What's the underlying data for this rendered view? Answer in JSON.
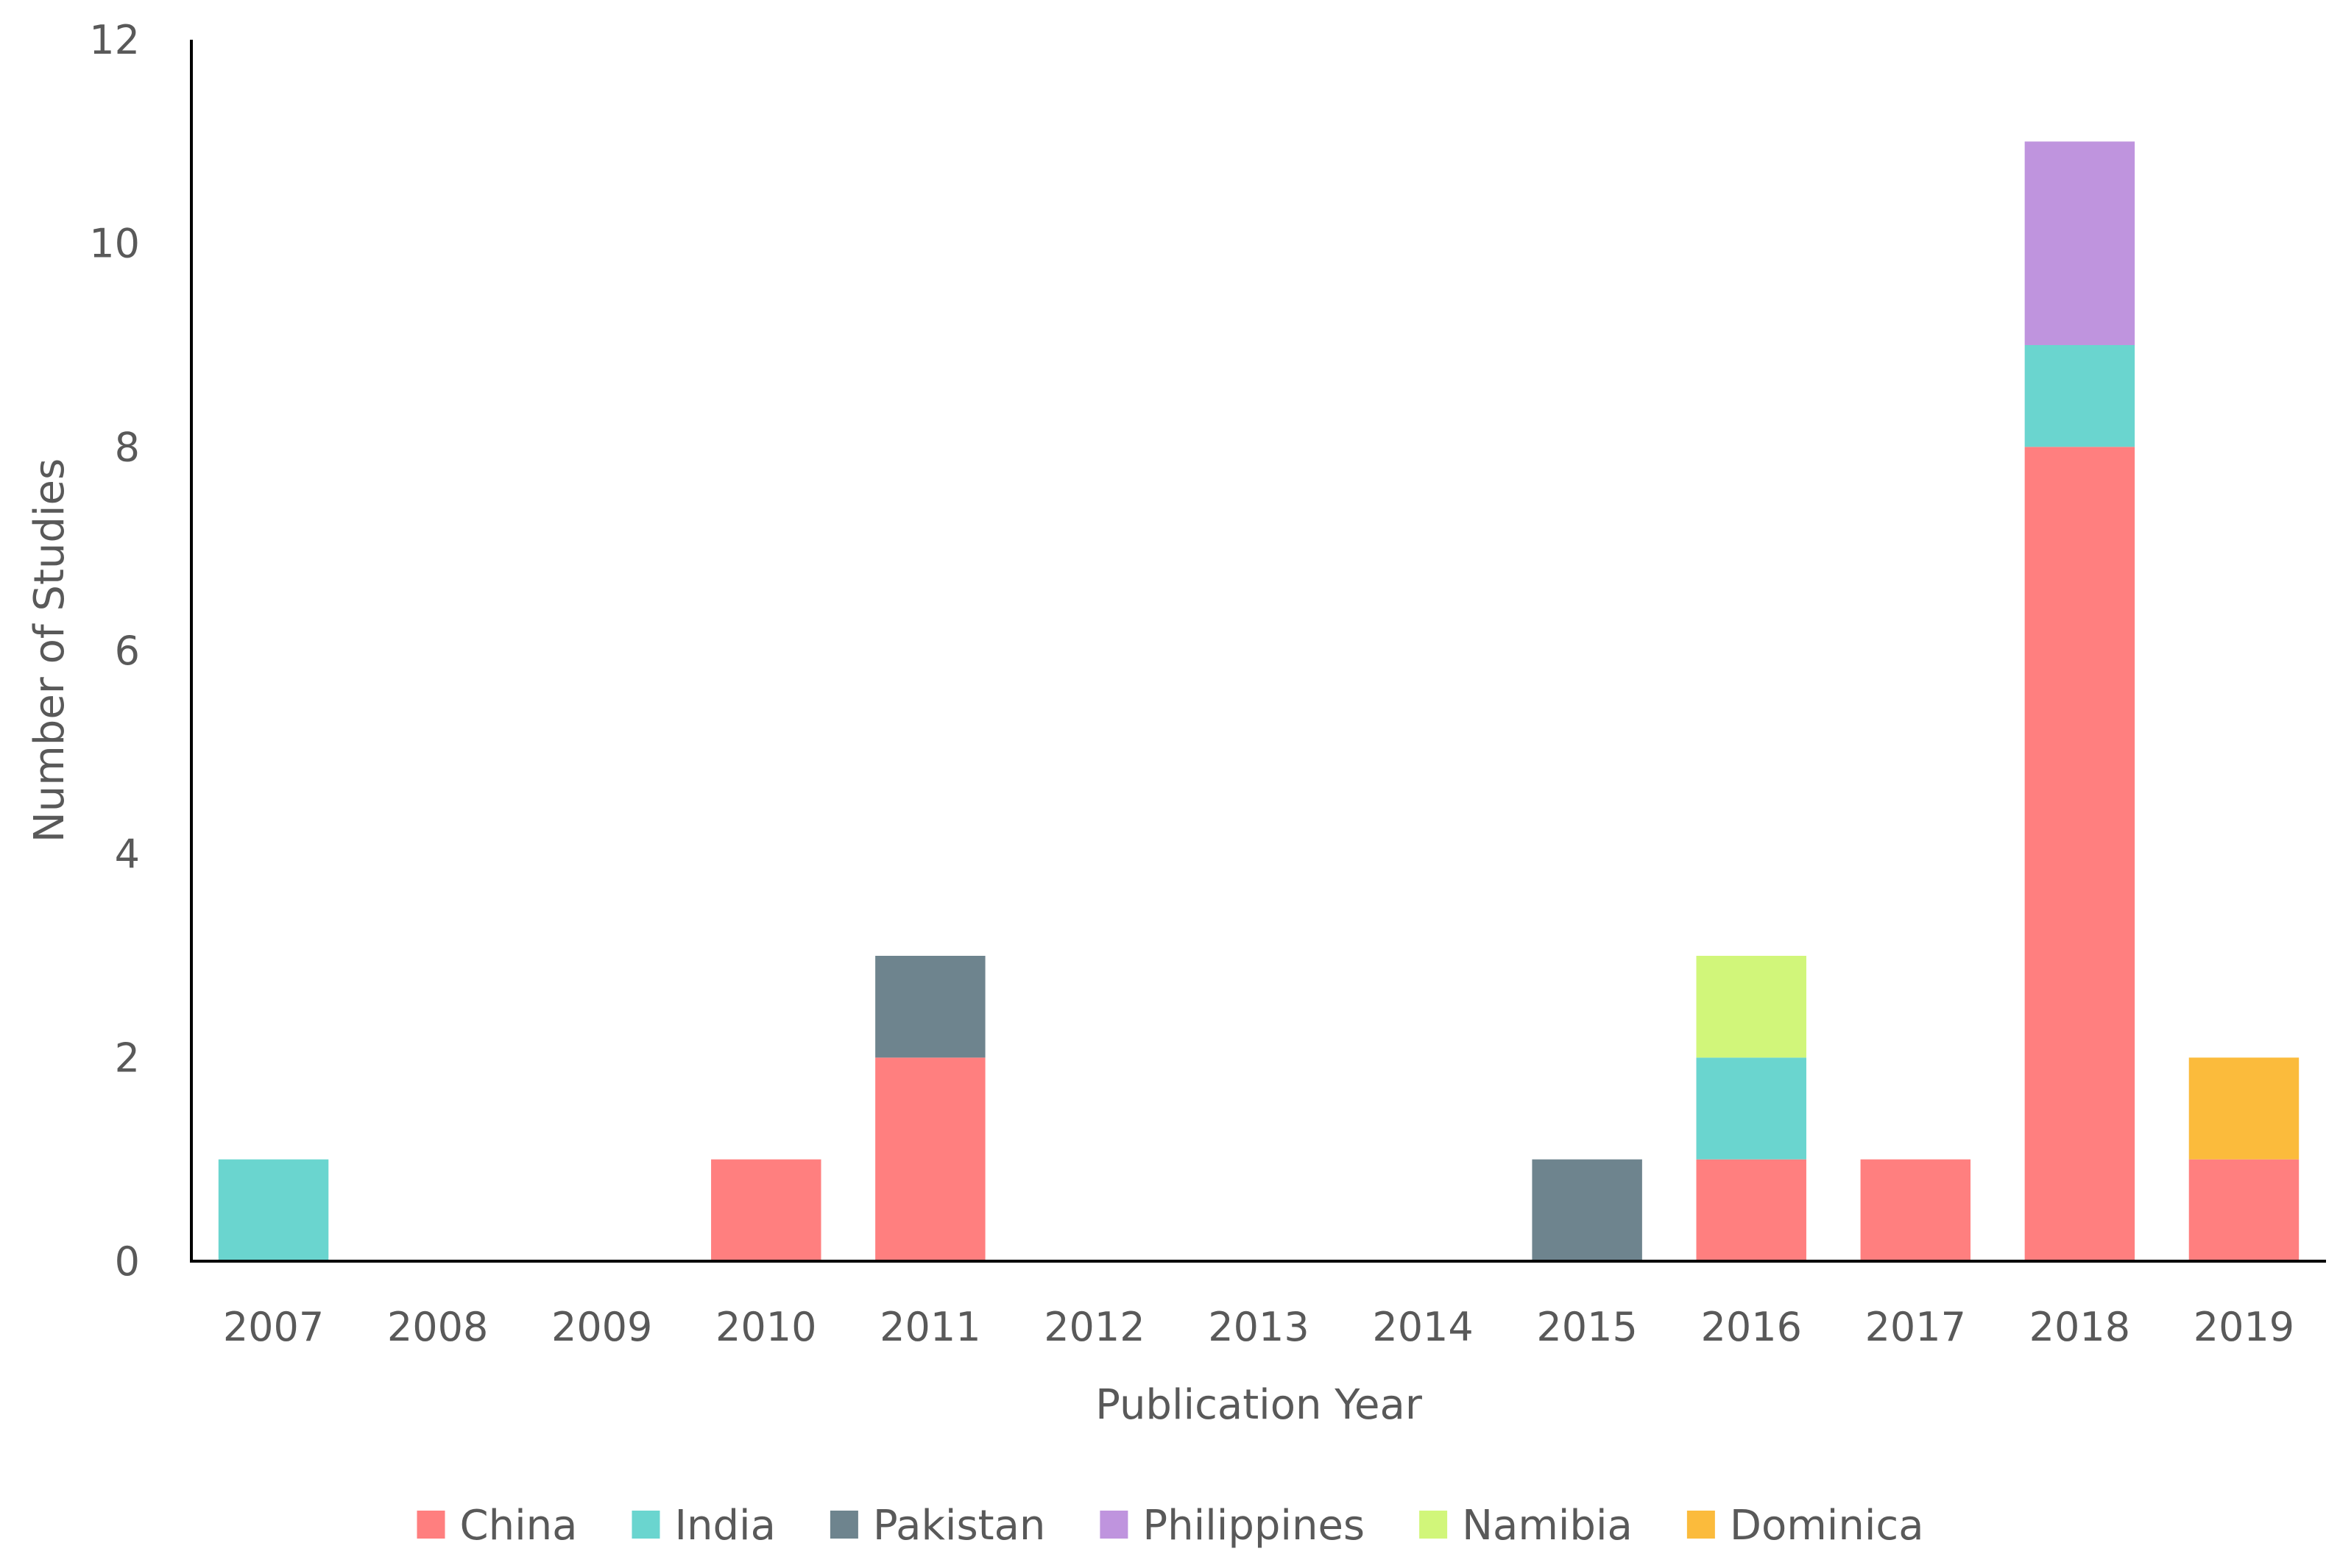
{
  "chart_data": {
    "type": "bar",
    "stacked": true,
    "categories": [
      "2007",
      "2008",
      "2009",
      "2010",
      "2011",
      "2012",
      "2013",
      "2014",
      "2015",
      "2016",
      "2017",
      "2018",
      "2019"
    ],
    "series": [
      {
        "name": "China",
        "color": "#ff7f7f",
        "values": [
          0,
          0,
          0,
          1,
          2,
          0,
          0,
          0,
          0,
          1,
          1,
          8,
          1
        ]
      },
      {
        "name": "India",
        "color": "#6ad5cf",
        "values": [
          1,
          0,
          0,
          0,
          0,
          0,
          0,
          0,
          0,
          1,
          0,
          1,
          0
        ]
      },
      {
        "name": "Pakistan",
        "color": "#6e848e",
        "values": [
          0,
          0,
          0,
          0,
          1,
          0,
          0,
          0,
          1,
          0,
          0,
          0,
          0
        ]
      },
      {
        "name": "Philippines",
        "color": "#bf94de",
        "values": [
          0,
          0,
          0,
          0,
          0,
          0,
          0,
          0,
          0,
          0,
          0,
          2,
          0
        ]
      },
      {
        "name": "Namibia",
        "color": "#d1f67a",
        "values": [
          0,
          0,
          0,
          0,
          0,
          0,
          0,
          0,
          0,
          1,
          0,
          0,
          0
        ]
      },
      {
        "name": "Dominica",
        "color": "#fbbb3c",
        "values": [
          0,
          0,
          0,
          0,
          0,
          0,
          0,
          0,
          0,
          0,
          0,
          0,
          1
        ]
      }
    ],
    "xlabel": "Publication Year",
    "ylabel": "Number of Studies",
    "ylim": [
      0,
      12
    ],
    "yticks": [
      0,
      2,
      4,
      6,
      8,
      10,
      12
    ],
    "grid": false,
    "legend_position": "bottom"
  }
}
